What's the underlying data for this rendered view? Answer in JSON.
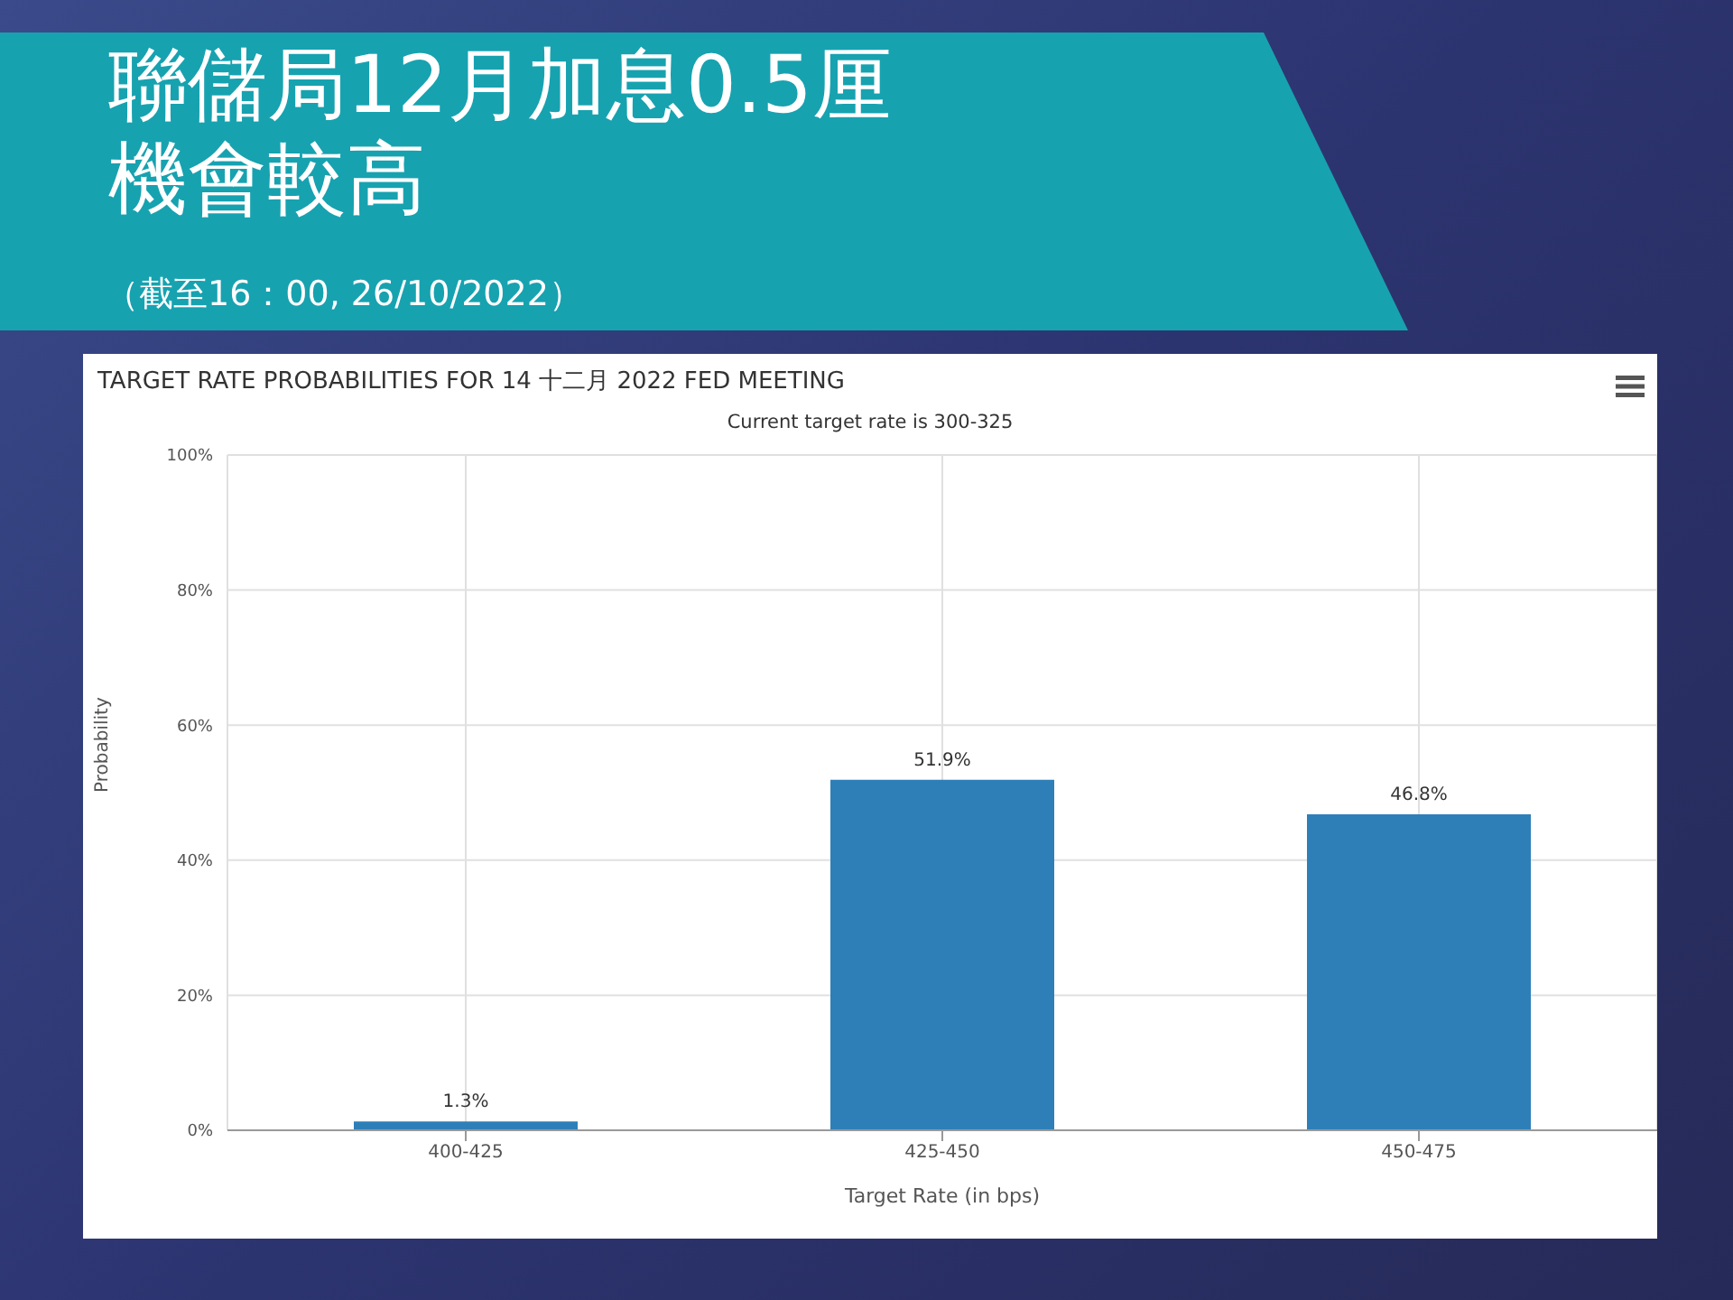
{
  "chart_data": {
    "type": "bar",
    "title": "聯儲局12月加息0.5厘機會較高",
    "subtitle": "TARGET RATE PROBABILITIES FOR 14 十二月 2022 FED MEETING",
    "annotations": [
      "Current target rate is 300-325",
      "（截至16：00, 26/10/2022）"
    ],
    "xlabel": "Target Rate (in bps)",
    "ylabel": "Probability",
    "categories": [
      "400-425",
      "425-450",
      "450-475"
    ],
    "values": [
      1.3,
      51.9,
      46.8
    ],
    "value_labels": [
      "1.3%",
      "51.9%",
      "46.8%"
    ],
    "color": "#2e7fb8",
    "ylim": [
      0,
      100
    ],
    "yticks": [
      {
        "value": 0,
        "label": "0%"
      },
      {
        "value": 20,
        "label": "20%"
      },
      {
        "value": 40,
        "label": "40%"
      },
      {
        "value": 60,
        "label": "60%"
      },
      {
        "value": 80,
        "label": "80%"
      },
      {
        "value": 100,
        "label": "100%"
      }
    ],
    "grid": true
  }
}
